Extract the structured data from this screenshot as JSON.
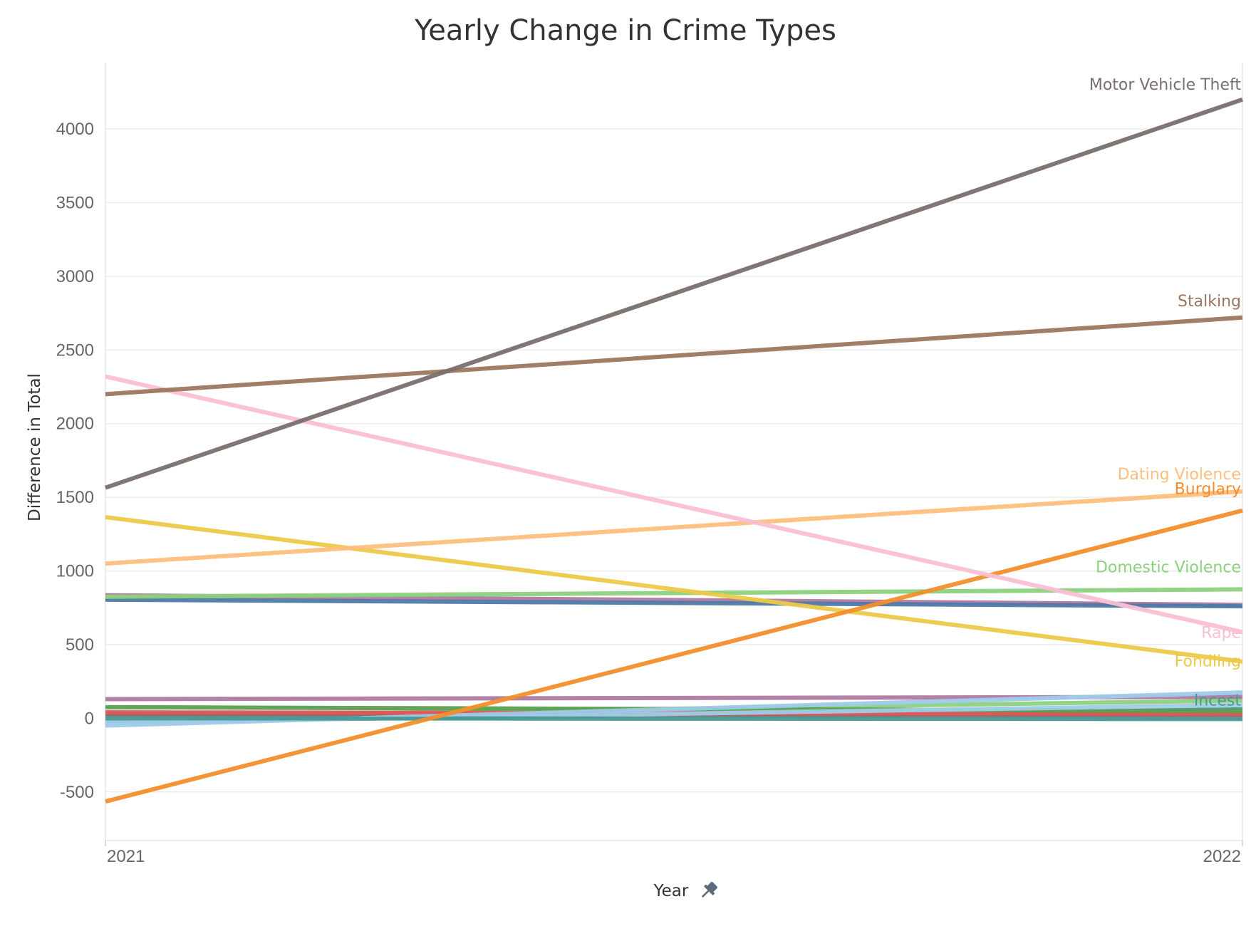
{
  "chart_data": {
    "type": "line",
    "title": "Yearly Change in Crime Types",
    "xlabel": "Year",
    "ylabel": "Difference in Total",
    "x": [
      "2021",
      "2022"
    ],
    "ylim": [
      -830,
      4450
    ],
    "yticks": [
      -500,
      0,
      500,
      1000,
      1500,
      2000,
      2500,
      3000,
      3500,
      4000
    ],
    "grid": true,
    "legend": "none",
    "series": [
      {
        "name": "",
        "color": "#8cd17d",
        "values": [
          10,
          120
        ]
      },
      {
        "name": "",
        "color": "#499894",
        "values": [
          -20,
          60
        ]
      },
      {
        "name": "",
        "color": "#b6992d",
        "values": [
          15,
          20
        ]
      },
      {
        "name": "",
        "color": "#f1ce63",
        "values": [
          5,
          30
        ]
      },
      {
        "name": "",
        "color": "#d37295",
        "values": [
          20,
          15
        ]
      },
      {
        "name": "",
        "color": "#79706e",
        "values": [
          30,
          25
        ]
      },
      {
        "name": "",
        "color": "#e15759",
        "values": [
          40,
          30
        ]
      },
      {
        "name": "",
        "color": "#59a14f",
        "values": [
          75,
          50
        ]
      },
      {
        "name": "",
        "color": "#b07aa1",
        "values": [
          130,
          145
        ]
      },
      {
        "name": "",
        "color": "#9ecae9",
        "values": [
          -50,
          175
        ]
      },
      {
        "name": "",
        "color": "#a0cbe8",
        "values": [
          -30,
          90
        ]
      },
      {
        "name": "Incest",
        "color": "#499894",
        "values": [
          0,
          -5
        ]
      },
      {
        "name": "",
        "color": "#b07aa1",
        "values": [
          835,
          770
        ]
      },
      {
        "name": "",
        "color": "#4e79a7",
        "values": [
          805,
          760
        ]
      },
      {
        "name": "Domestic Violence",
        "color": "#8cd17d",
        "values": [
          825,
          875
        ]
      },
      {
        "name": "Fondling",
        "color": "#edc948",
        "values": [
          1365,
          385
        ]
      },
      {
        "name": "Dating Violence",
        "color": "#ffbe7d",
        "values": [
          1050,
          1540
        ]
      },
      {
        "name": "Burglary",
        "color": "#f28e2b",
        "values": [
          -565,
          1410
        ]
      },
      {
        "name": "Rape",
        "color": "#fabfd2",
        "values": [
          2320,
          585
        ]
      },
      {
        "name": "Stalking",
        "color": "#9d7660",
        "values": [
          2200,
          2720
        ]
      },
      {
        "name": "Motor Vehicle Theft",
        "color": "#79706e",
        "values": [
          1565,
          4200
        ]
      }
    ],
    "label_offsets": {
      "Motor Vehicle Theft": -105,
      "Stalking": -115,
      "Dating Violence": -120,
      "Burglary": -150,
      "Domestic Violence": -155,
      "Rape": 0,
      "Fondling": -5,
      "Incest": -130
    }
  }
}
